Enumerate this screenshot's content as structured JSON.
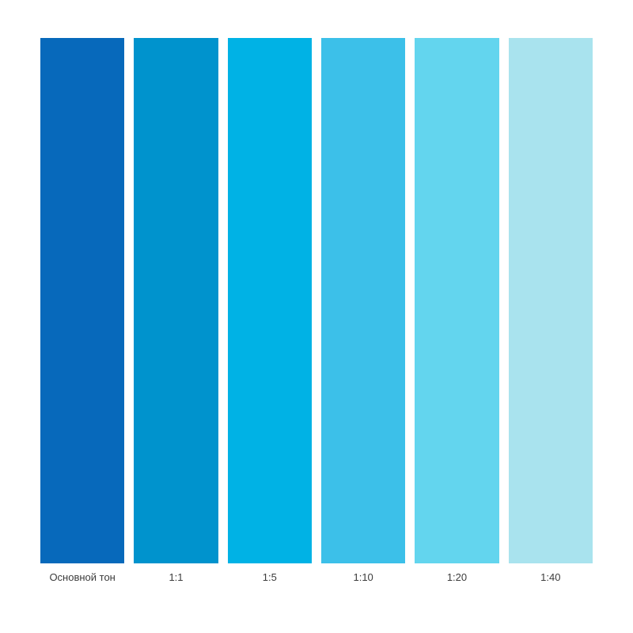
{
  "page": {
    "background": "#ffffff",
    "label_color": "#3c3c3c"
  },
  "chart_data": {
    "type": "bar",
    "title": "",
    "xlabel": "",
    "ylabel": "",
    "categories": [
      "Основной тон",
      "1:1",
      "1:5",
      "1:10",
      "1:20",
      "1:40"
    ],
    "series": [
      {
        "name": "tint-swatch",
        "values": [
          1,
          1,
          1,
          1,
          1,
          1
        ]
      }
    ],
    "colors": [
      "#0769bb",
      "#0093cd",
      "#00b2e5",
      "#3cc0e9",
      "#63d5ee",
      "#a9e3ee"
    ],
    "legend": false,
    "grid": false,
    "layout_hint": "six equal full-height color swatch columns with white gaps; category labels centered below each column"
  },
  "swatches": [
    {
      "label": "Основной тон",
      "color": "#0769bb"
    },
    {
      "label": "1:1",
      "color": "#0093cd"
    },
    {
      "label": "1:5",
      "color": "#00b2e5"
    },
    {
      "label": "1:10",
      "color": "#3cc0e9"
    },
    {
      "label": "1:20",
      "color": "#63d5ee"
    },
    {
      "label": "1:40",
      "color": "#a9e3ee"
    }
  ]
}
